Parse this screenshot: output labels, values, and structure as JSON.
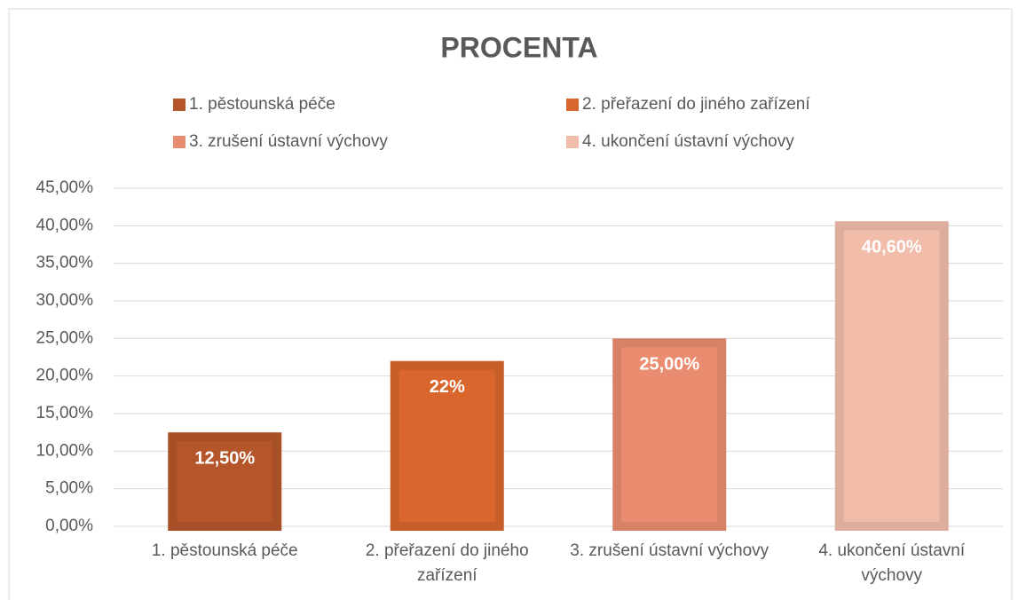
{
  "chart_data": {
    "type": "bar",
    "title": "PROCENTA",
    "categories": [
      "1. pěstounská péče",
      "2. přeřazení do jiného zařízení",
      "3. zrušení ústavní výchovy",
      "4.  ukončení ústavní výchovy"
    ],
    "values": [
      12.5,
      22,
      25,
      40.6
    ],
    "value_labels": [
      "12,50%",
      "22%",
      "25,00%",
      "40,60%"
    ],
    "colors": [
      "#b5562a",
      "#d9662d",
      "#ea8c6f",
      "#f2bcab"
    ],
    "ylim": [
      0,
      45
    ],
    "yticks": [
      {
        "value": 0,
        "label": "0,00%"
      },
      {
        "value": 5,
        "label": "5,00%"
      },
      {
        "value": 10,
        "label": "10,00%"
      },
      {
        "value": 15,
        "label": "15,00%"
      },
      {
        "value": 20,
        "label": "20,00%"
      },
      {
        "value": 25,
        "label": "25,00%"
      },
      {
        "value": 30,
        "label": "30,00%"
      },
      {
        "value": 35,
        "label": "35,00%"
      },
      {
        "value": 40,
        "label": "40,00%"
      },
      {
        "value": 45,
        "label": "45,00%"
      }
    ],
    "grid": true
  }
}
